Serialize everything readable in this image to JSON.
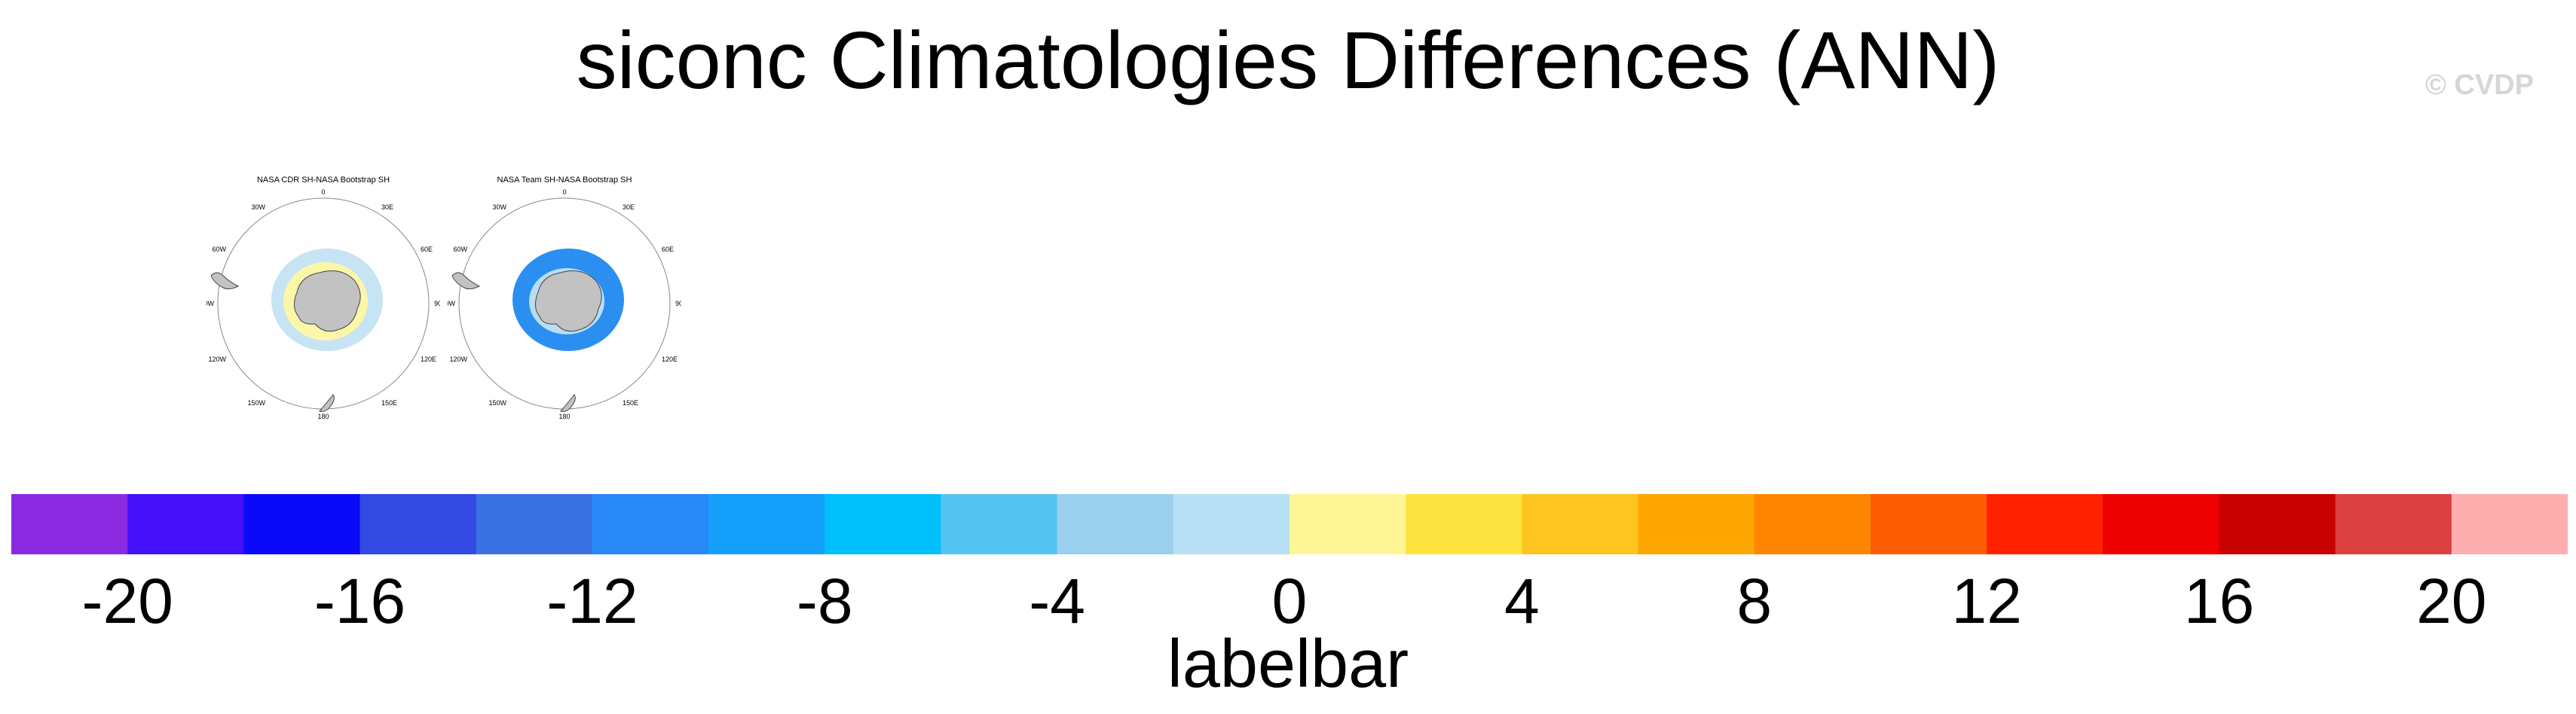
{
  "title": "siconc Climatologies Differences (ANN)",
  "watermark": "© CVDP",
  "panels": [
    {
      "title": "NASA CDR SH-NASA Bootstrap SH",
      "ring_color": "#c6e4f4",
      "inner_color": "#fcf7a8",
      "land_color": "#c2c2c2"
    },
    {
      "title": "NASA Team SH-NASA Bootstrap SH",
      "ring_color": "#2a8ff0",
      "inner_color": "#b8ddf4",
      "land_color": "#c2c2c2"
    }
  ],
  "map_labels": {
    "top": "0",
    "top_right": "30E",
    "upper_right": "60E",
    "right": "90E",
    "lower_right": "120E",
    "bottom_right": "150E",
    "bottom": "180",
    "bottom_left": "150W",
    "lower_left": "120W",
    "left": "90W",
    "upper_left": "60W",
    "top_left": "30W"
  },
  "colorbar": {
    "title": "labelbar",
    "colors": [
      "#8a2be2",
      "#4410f8",
      "#0a0af8",
      "#3448e2",
      "#3a72e4",
      "#2888f8",
      "#14a0fa",
      "#00c0fc",
      "#56c4f2",
      "#9ad0ee",
      "#b8e0f4",
      "#fef696",
      "#fee440",
      "#fec420",
      "#fea600",
      "#fe8600",
      "#fe5c00",
      "#fe2200",
      "#ec0000",
      "#c80000",
      "#dc4040",
      "#feaeae"
    ],
    "tick_labels": [
      "-20",
      "-16",
      "-12",
      "-8",
      "-4",
      "0",
      "4",
      "8",
      "12",
      "16",
      "20"
    ]
  }
}
